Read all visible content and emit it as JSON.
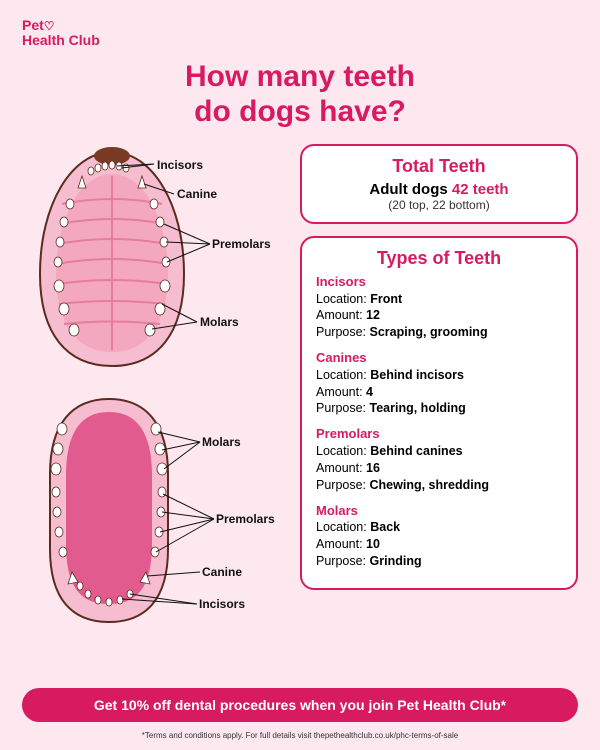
{
  "brand": {
    "line1": "Pet",
    "line2": "Health Club",
    "heart": "♡"
  },
  "title": {
    "line1": "How many teeth",
    "line2": "do dogs have?"
  },
  "total_box": {
    "title": "Total Teeth",
    "prefix": "Adult dogs ",
    "count": "42 teeth",
    "breakdown": "(20 top, 22 bottom)"
  },
  "types_box": {
    "title": "Types of Teeth",
    "types": [
      {
        "name": "Incisors",
        "location": "Front",
        "amount": "12",
        "purpose": "Scraping, grooming"
      },
      {
        "name": "Canines",
        "location": "Behind incisors",
        "amount": "4",
        "purpose": "Tearing, holding"
      },
      {
        "name": "Premolars",
        "location": "Behind canines",
        "amount": "16",
        "purpose": "Chewing, shredding"
      },
      {
        "name": "Molars",
        "location": "Back",
        "amount": "10",
        "purpose": "Grinding"
      }
    ]
  },
  "diagram": {
    "upper_labels": [
      "Incisors",
      "Canine",
      "Premolars",
      "Molars"
    ],
    "lower_labels": [
      "Molars",
      "Premolars",
      "Canine",
      "Incisors"
    ],
    "colors": {
      "bg": "#fce8ee",
      "brand": "#d81b60",
      "palate_light": "#f4a8bf",
      "palate_dark": "#e77ba0",
      "tongue": "#e15b8f",
      "gum": "#f6bccf",
      "tooth": "#ffffff",
      "outline": "#5a2b1e",
      "nose": "#7a3b24"
    }
  },
  "banner": "Get 10% off dental procedures when you join Pet Health Club*",
  "footnote": "*Terms and conditions apply. For full details visit thepethealthclub.co.uk/phc-terms-of-sale"
}
